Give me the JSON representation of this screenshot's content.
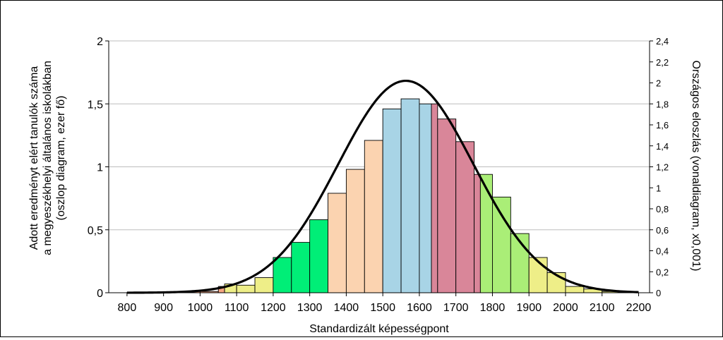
{
  "chart_data": {
    "type": "bar",
    "title": "",
    "xlabel": "Standardizált képességpont",
    "ylabel_lines": [
      "Adott eredményt elért tanulók száma",
      "a megyeszékhelyi általános iskolákban",
      "(oszlop diagram, ezer fő)"
    ],
    "y2label": "Országos eloszlás (vonaldiagram, x0,001)",
    "xlim": [
      750,
      2230
    ],
    "ylim": [
      0,
      2
    ],
    "y2lim": [
      0,
      2.4
    ],
    "x_ticks": [
      800,
      900,
      1000,
      1100,
      1200,
      1300,
      1400,
      1500,
      1600,
      1700,
      1800,
      1900,
      2000,
      2100,
      2200
    ],
    "y_ticks": [
      0,
      0.5,
      1,
      1.5,
      2
    ],
    "y_tick_labels": [
      "0",
      "0,5",
      "1",
      "1,5",
      "2"
    ],
    "y2_ticks": [
      0,
      0.2,
      0.4,
      0.6,
      0.8,
      1,
      1.2,
      1.4,
      1.6,
      1.8,
      2,
      2.2,
      2.4
    ],
    "y2_tick_labels": [
      "0",
      "0,2",
      "0,4",
      "0,6",
      "0,8",
      "1",
      "1,2",
      "1,4",
      "1,6",
      "1,8",
      "2",
      "2,2",
      "2,4"
    ],
    "grid": true,
    "bars": [
      {
        "x0": 800,
        "x1": 850,
        "value": 0.002,
        "color": "#f4a582"
      },
      {
        "x0": 850,
        "x1": 900,
        "value": 0.003,
        "color": "#f4a582"
      },
      {
        "x0": 900,
        "x1": 950,
        "value": 0.004,
        "color": "#f4a582"
      },
      {
        "x0": 950,
        "x1": 1000,
        "value": 0.01,
        "color": "#f4a582"
      },
      {
        "x0": 1000,
        "x1": 1050,
        "value": 0.01,
        "color": "#f4a582"
      },
      {
        "x0": 1050,
        "x1": 1067,
        "value": 0.05,
        "color": "#f4a582"
      },
      {
        "x0": 1067,
        "x1": 1100,
        "value": 0.07,
        "color": "#eeee88"
      },
      {
        "x0": 1100,
        "x1": 1150,
        "value": 0.06,
        "color": "#eeee88"
      },
      {
        "x0": 1150,
        "x1": 1200,
        "value": 0.12,
        "color": "#eeee88"
      },
      {
        "x0": 1200,
        "x1": 1250,
        "value": 0.28,
        "color": "#00ee77"
      },
      {
        "x0": 1250,
        "x1": 1300,
        "value": 0.4,
        "color": "#00ee77"
      },
      {
        "x0": 1300,
        "x1": 1350,
        "value": 0.58,
        "color": "#00ee77"
      },
      {
        "x0": 1350,
        "x1": 1400,
        "value": 0.79,
        "color": "#fbd3b0"
      },
      {
        "x0": 1400,
        "x1": 1450,
        "value": 0.98,
        "color": "#fbd3b0"
      },
      {
        "x0": 1450,
        "x1": 1500,
        "value": 1.21,
        "color": "#fbd3b0"
      },
      {
        "x0": 1500,
        "x1": 1550,
        "value": 1.46,
        "color": "#a8d4e6"
      },
      {
        "x0": 1550,
        "x1": 1600,
        "value": 1.54,
        "color": "#a8d4e6"
      },
      {
        "x0": 1600,
        "x1": 1633,
        "value": 1.5,
        "color": "#a8d4e6"
      },
      {
        "x0": 1633,
        "x1": 1650,
        "value": 1.5,
        "color": "#d98699"
      },
      {
        "x0": 1650,
        "x1": 1700,
        "value": 1.38,
        "color": "#d98699"
      },
      {
        "x0": 1700,
        "x1": 1750,
        "value": 1.2,
        "color": "#d98699"
      },
      {
        "x0": 1750,
        "x1": 1767,
        "value": 0.94,
        "color": "#d98699"
      },
      {
        "x0": 1767,
        "x1": 1800,
        "value": 0.94,
        "color": "#aaee77"
      },
      {
        "x0": 1800,
        "x1": 1850,
        "value": 0.76,
        "color": "#aaee77"
      },
      {
        "x0": 1850,
        "x1": 1900,
        "value": 0.47,
        "color": "#aaee77"
      },
      {
        "x0": 1900,
        "x1": 1950,
        "value": 0.28,
        "color": "#eeee88"
      },
      {
        "x0": 1950,
        "x1": 2000,
        "value": 0.16,
        "color": "#eeee88"
      },
      {
        "x0": 2000,
        "x1": 2050,
        "value": 0.05,
        "color": "#eeee88"
      },
      {
        "x0": 2050,
        "x1": 2100,
        "value": 0.03,
        "color": "#eeee88"
      },
      {
        "x0": 2100,
        "x1": 2150,
        "value": 0.01,
        "color": "#eeee88"
      }
    ],
    "curve": {
      "axis": "secondary",
      "mean": 1563,
      "sd": 185,
      "peak": 2.02,
      "x_range": [
        800,
        2200
      ],
      "color": "#000000"
    }
  }
}
